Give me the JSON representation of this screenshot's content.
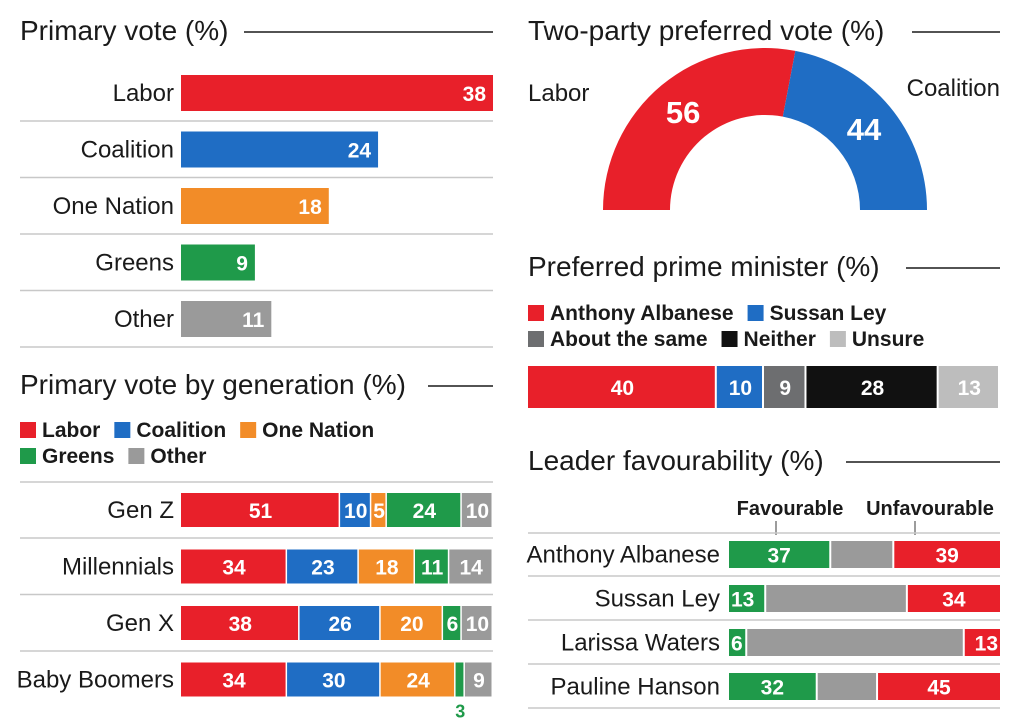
{
  "colors": {
    "labor": "#e8202a",
    "coalition": "#1f6dc4",
    "one_nation": "#f28c28",
    "greens": "#1f9a4a",
    "other": "#9a9a9a",
    "dark_grey": "#6d6e70",
    "neither": "#111111",
    "unsure": "#bdbdbd",
    "neutral": "#9a9a9a"
  },
  "chart_data": [
    {
      "id": "primary",
      "type": "bar",
      "title": "Primary vote (%)",
      "categories": [
        "Labor",
        "Coalition",
        "One Nation",
        "Greens",
        "Other"
      ],
      "values": [
        38,
        24,
        18,
        9,
        11
      ],
      "bar_colors": [
        "labor",
        "coalition",
        "one_nation",
        "greens",
        "other"
      ],
      "xlim": [
        0,
        38
      ]
    },
    {
      "id": "tpp",
      "type": "pie",
      "title": "Two-party preferred vote (%)",
      "slices": [
        {
          "name": "Labor",
          "value": 56,
          "color": "labor"
        },
        {
          "name": "Coalition",
          "value": 44,
          "color": "coalition"
        }
      ]
    },
    {
      "id": "generation",
      "type": "bar",
      "stacked": true,
      "title": "Primary vote by generation (%)",
      "legend": [
        {
          "name": "Labor",
          "color": "labor"
        },
        {
          "name": "Coalition",
          "color": "coalition"
        },
        {
          "name": "One Nation",
          "color": "one_nation"
        },
        {
          "name": "Greens",
          "color": "greens"
        },
        {
          "name": "Other",
          "color": "other"
        }
      ],
      "categories": [
        "Gen Z",
        "Millennials",
        "Gen X",
        "Baby Boomers"
      ],
      "series": [
        {
          "name": "Labor",
          "color": "labor",
          "values": [
            51,
            34,
            38,
            34
          ]
        },
        {
          "name": "Coalition",
          "color": "coalition",
          "values": [
            10,
            23,
            26,
            30
          ]
        },
        {
          "name": "One Nation",
          "color": "one_nation",
          "values": [
            5,
            18,
            20,
            24
          ]
        },
        {
          "name": "Greens",
          "color": "greens",
          "values": [
            24,
            11,
            6,
            3
          ]
        },
        {
          "name": "Other",
          "color": "other",
          "values": [
            10,
            14,
            10,
            9
          ]
        }
      ]
    },
    {
      "id": "ppm",
      "type": "bar",
      "stacked": true,
      "title": "Preferred prime minister (%)",
      "legend": [
        {
          "name": "Anthony Albanese",
          "color": "labor"
        },
        {
          "name": "Sussan Ley",
          "color": "coalition"
        },
        {
          "name": "About the same",
          "color": "dark_grey"
        },
        {
          "name": "Neither",
          "color": "neither"
        },
        {
          "name": "Unsure",
          "color": "unsure"
        }
      ],
      "values": [
        40,
        10,
        9,
        28,
        13
      ],
      "bar_colors": [
        "labor",
        "coalition",
        "dark_grey",
        "neither",
        "unsure"
      ]
    },
    {
      "id": "favour",
      "type": "bar",
      "stacked": true,
      "title": "Leader favourability (%)",
      "headers": {
        "favourable": "Favourable",
        "unfavourable": "Unfavourable"
      },
      "categories": [
        "Anthony Albanese",
        "Sussan Ley",
        "Larissa Waters",
        "Pauline Hanson"
      ],
      "favourable": [
        37,
        13,
        6,
        32
      ],
      "unfavourable": [
        39,
        34,
        13,
        45
      ]
    }
  ]
}
